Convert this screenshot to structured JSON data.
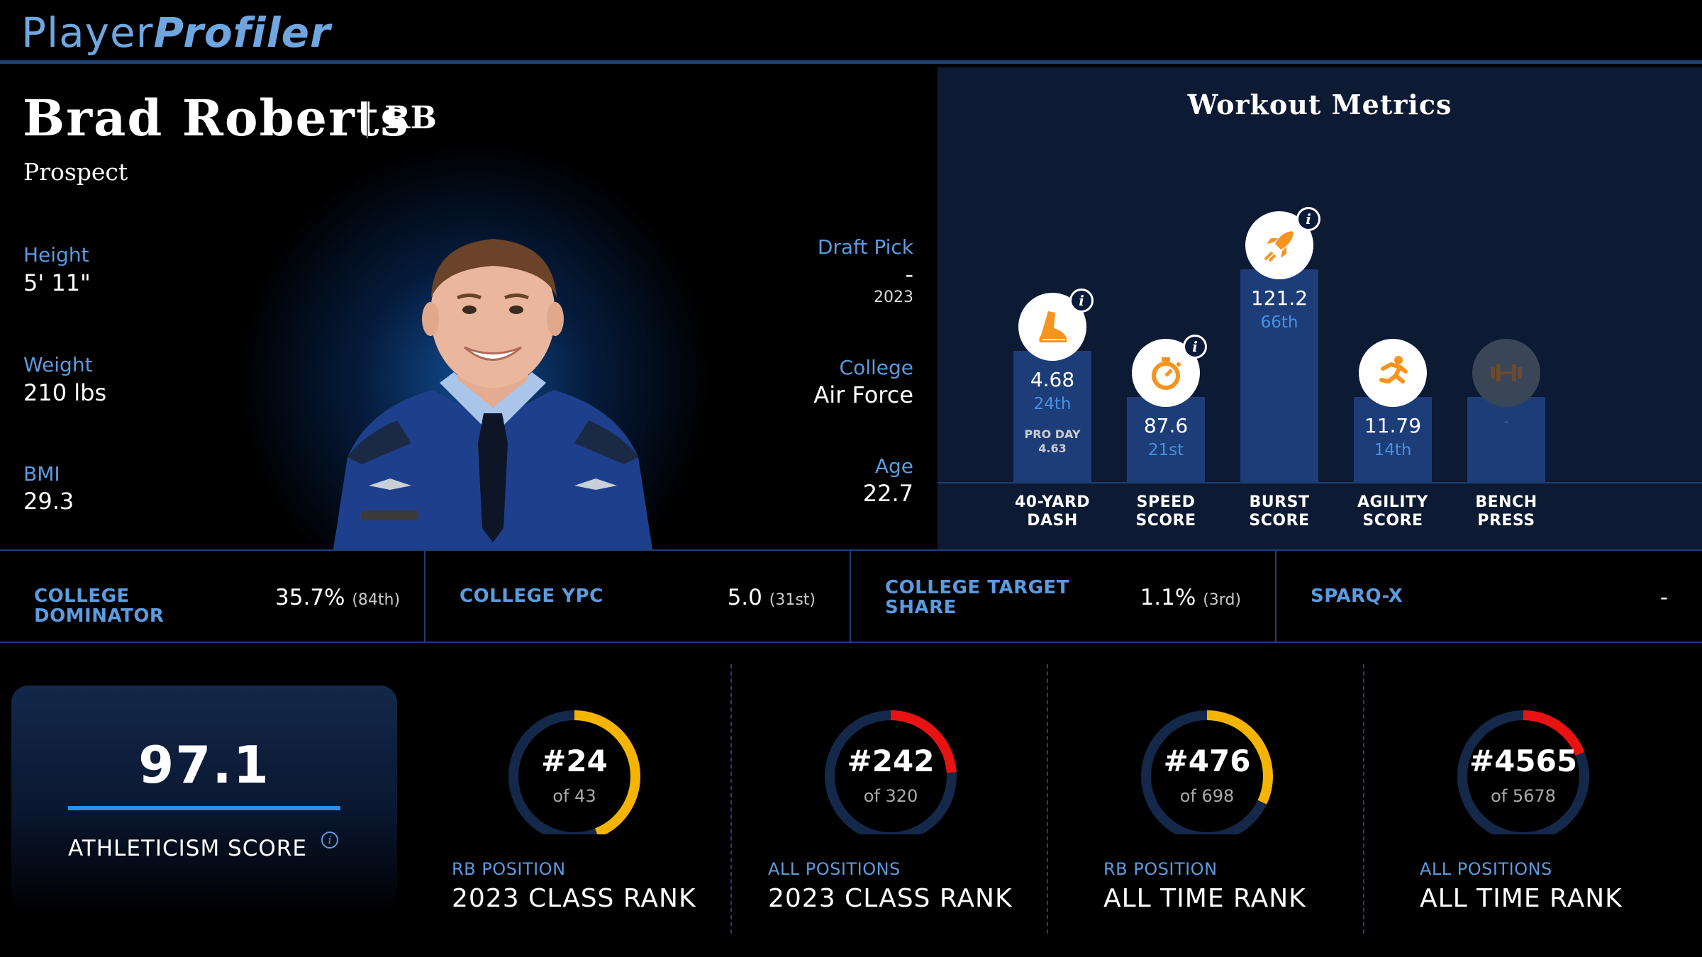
{
  "header": {
    "logo_part1": "Player",
    "logo_part2": "Profiler"
  },
  "player": {
    "name": "Brad Roberts",
    "position": "RB",
    "status": "Prospect",
    "height_label": "Height",
    "height": "5' 11\"",
    "weight_label": "Weight",
    "weight": "210 lbs",
    "bmi_label": "BMI",
    "bmi": "29.3",
    "draft_label": "Draft Pick",
    "draft_pick": "-",
    "draft_year": "2023",
    "college_label": "College",
    "college": "Air Force",
    "age_label": "Age",
    "age": "22.7"
  },
  "workout": {
    "title": "Workout Metrics",
    "metrics": [
      {
        "value": "4.68",
        "percentile": "24th",
        "note1": "PRO DAY",
        "note2": "4.63",
        "label1": "40-YARD",
        "label2": "DASH",
        "icon": "shoe-icon",
        "fill": 0.37
      },
      {
        "value": "87.6",
        "percentile": "21st",
        "note1": "",
        "note2": "",
        "label1": "SPEED",
        "label2": "SCORE",
        "icon": "stopwatch-icon",
        "fill": 0.24
      },
      {
        "value": "121.2",
        "percentile": "66th",
        "note1": "",
        "note2": "",
        "label1": "BURST",
        "label2": "SCORE",
        "icon": "rocket-icon",
        "fill": 0.6
      },
      {
        "value": "11.79",
        "percentile": "14th",
        "note1": "",
        "note2": "",
        "label1": "AGILITY",
        "label2": "SCORE",
        "icon": "runner-icon",
        "fill": 0.24
      },
      {
        "value": "-",
        "percentile": "",
        "note1": "",
        "note2": "",
        "label1": "BENCH",
        "label2": "PRESS",
        "icon": "barbell-icon",
        "fill": 0.24
      }
    ]
  },
  "college_stats": [
    {
      "label": "COLLEGE DOMINATOR",
      "value": "35.7%",
      "rank": "(84th)"
    },
    {
      "label": "COLLEGE YPC",
      "value": "5.0",
      "rank": "(31st)"
    },
    {
      "label": "COLLEGE TARGET SHARE",
      "value": "1.1%",
      "rank": "(3rd)"
    },
    {
      "label": "SPARQ-X",
      "value": "-",
      "rank": ""
    }
  ],
  "athleticism": {
    "score": "97.1",
    "label": "ATHLETICISM SCORE"
  },
  "ranks": [
    {
      "rank": "#24",
      "of": "of 43",
      "category": "RB POSITION",
      "title": "2023 CLASS RANK",
      "fraction": 0.44,
      "color": "#f5b400"
    },
    {
      "rank": "#242",
      "of": "of 320",
      "category": "ALL POSITIONS",
      "title": "2023 CLASS RANK",
      "fraction": 0.24,
      "color": "#e81212"
    },
    {
      "rank": "#476",
      "of": "of 698",
      "category": "RB POSITION",
      "title": "ALL TIME RANK",
      "fraction": 0.32,
      "color": "#f5b400"
    },
    {
      "rank": "#4565",
      "of": "of 5678",
      "category": "ALL POSITIONS",
      "title": "ALL TIME RANK",
      "fraction": 0.19,
      "color": "#e81212"
    }
  ],
  "colors": {
    "accent": "#5b9be0",
    "bar": "#1d3d78",
    "icon": "#f7931e"
  }
}
